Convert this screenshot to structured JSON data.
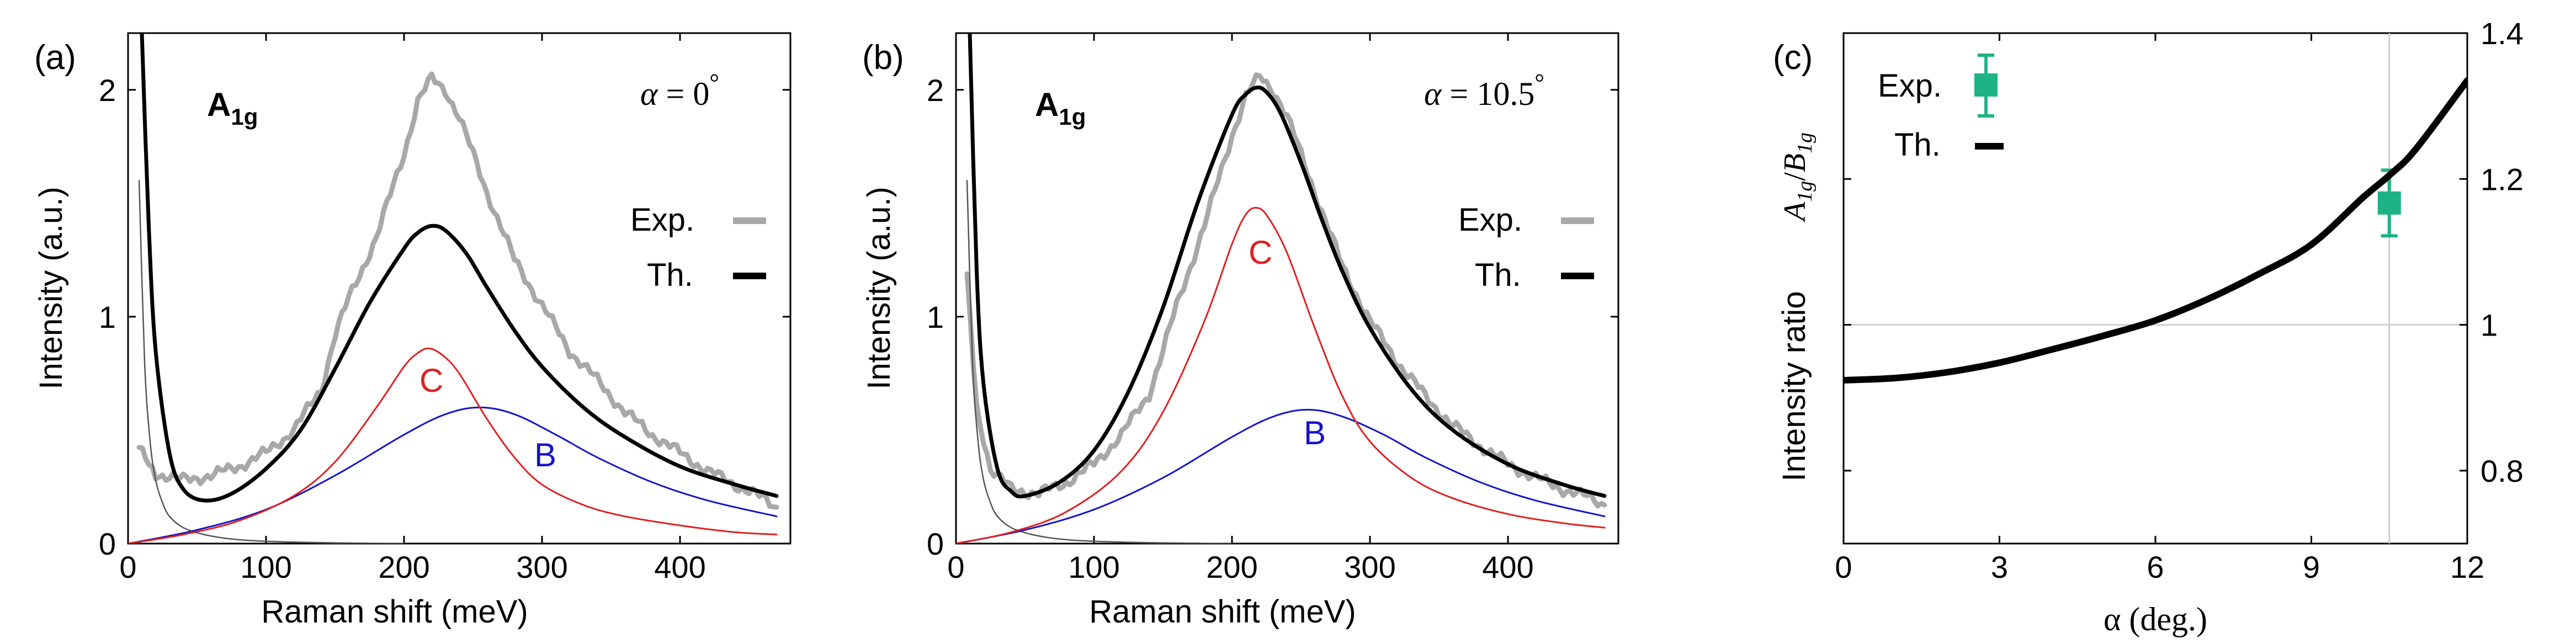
{
  "chart_data": [
    {
      "panel": "(a)",
      "type": "line",
      "title": "A1g",
      "title_main": "A",
      "title_sub": "1g",
      "angle_label": "α = 0",
      "angle_symbol": "α",
      "angle_rest": " = 0",
      "degree_mark": "°",
      "xlabel": "Raman shift (meV)",
      "ylabel": "Intensity (a.u.)",
      "xlim": [
        0,
        480
      ],
      "ylim": [
        0,
        2.25
      ],
      "xticks": [
        0,
        100,
        200,
        300,
        400
      ],
      "xtick_labels": [
        "0",
        "100",
        "200",
        "300",
        "400"
      ],
      "yticks": [
        0,
        1,
        2
      ],
      "ytick_labels": [
        "0",
        "1",
        "2"
      ],
      "legend": [
        "Exp.",
        "Th."
      ],
      "peak_labels": {
        "C": "C",
        "B": "B"
      },
      "series": [
        {
          "name": "Exp.",
          "color": "#a8a8a8",
          "x": [
            8,
            20,
            40,
            60,
            80,
            100,
            120,
            140,
            150,
            160,
            180,
            200,
            210,
            220,
            230,
            240,
            260,
            280,
            300,
            320,
            340,
            360,
            380,
            400,
            420,
            440,
            460,
            470
          ],
          "y": [
            0.45,
            0.31,
            0.28,
            0.3,
            0.34,
            0.4,
            0.5,
            0.68,
            0.92,
            1.08,
            1.35,
            1.72,
            1.95,
            2.05,
            2.0,
            1.88,
            1.55,
            1.25,
            1.05,
            0.85,
            0.72,
            0.58,
            0.48,
            0.4,
            0.32,
            0.26,
            0.2,
            0.16
          ]
        },
        {
          "name": "Th.",
          "color": "#000000",
          "x": [
            10,
            15,
            20,
            30,
            40,
            55,
            75,
            100,
            125,
            150,
            175,
            200,
            210,
            220,
            230,
            245,
            260,
            280,
            300,
            330,
            360,
            400,
            440,
            470
          ],
          "y": [
            2.25,
            1.4,
            0.85,
            0.4,
            0.24,
            0.19,
            0.22,
            0.33,
            0.5,
            0.77,
            1.06,
            1.3,
            1.37,
            1.4,
            1.38,
            1.28,
            1.13,
            0.94,
            0.78,
            0.6,
            0.47,
            0.34,
            0.26,
            0.21
          ]
        },
        {
          "name": "C",
          "color": "#e02020",
          "x": [
            0,
            40,
            80,
            120,
            150,
            180,
            200,
            210,
            218,
            228,
            240,
            260,
            280,
            300,
            330,
            360,
            400,
            440,
            470
          ],
          "y": [
            0,
            0.04,
            0.1,
            0.21,
            0.36,
            0.6,
            0.78,
            0.84,
            0.86,
            0.83,
            0.75,
            0.55,
            0.38,
            0.26,
            0.17,
            0.12,
            0.08,
            0.05,
            0.04
          ]
        },
        {
          "name": "B",
          "color": "#1414c8",
          "x": [
            0,
            50,
            100,
            150,
            200,
            230,
            255,
            280,
            310,
            340,
            380,
            420,
            470
          ],
          "y": [
            0,
            0.06,
            0.15,
            0.3,
            0.48,
            0.57,
            0.6,
            0.57,
            0.48,
            0.38,
            0.27,
            0.19,
            0.12
          ]
        },
        {
          "name": "background",
          "color": "#555555",
          "x": [
            8,
            12,
            16,
            20,
            25,
            30,
            40,
            55,
            75,
            100,
            150,
            200
          ],
          "y": [
            1.6,
            0.8,
            0.45,
            0.28,
            0.18,
            0.12,
            0.07,
            0.04,
            0.02,
            0.01,
            0.003,
            0
          ]
        }
      ]
    },
    {
      "panel": "(b)",
      "type": "line",
      "title": "A1g",
      "title_main": "A",
      "title_sub": "1g",
      "angle_label": "α = 10.5",
      "angle_symbol": "α",
      "angle_rest": " = 10.5",
      "degree_mark": "°",
      "xlabel": "Raman shift (meV)",
      "ylabel": "Intensity (a.u.)",
      "xlim": [
        0,
        480
      ],
      "ylim": [
        0,
        2.25
      ],
      "xticks": [
        0,
        100,
        200,
        300,
        400
      ],
      "xtick_labels": [
        "0",
        "100",
        "200",
        "300",
        "400"
      ],
      "yticks": [
        0,
        1,
        2
      ],
      "ytick_labels": [
        "0",
        "1",
        "2"
      ],
      "legend": [
        "Exp.",
        "Th."
      ],
      "peak_labels": {
        "C": "C",
        "B": "B"
      },
      "series": [
        {
          "name": "Exp.",
          "color": "#a8a8a8",
          "x": [
            8,
            15,
            25,
            40,
            60,
            80,
            100,
            120,
            140,
            150,
            160,
            180,
            200,
            210,
            220,
            230,
            240,
            260,
            280,
            300,
            320,
            340,
            360,
            380,
            400,
            420,
            440,
            460,
            470
          ],
          "y": [
            1.2,
            0.6,
            0.33,
            0.24,
            0.22,
            0.27,
            0.35,
            0.48,
            0.66,
            0.85,
            1.05,
            1.4,
            1.8,
            1.97,
            2.06,
            2.0,
            1.88,
            1.55,
            1.22,
            0.98,
            0.8,
            0.65,
            0.52,
            0.43,
            0.35,
            0.29,
            0.24,
            0.2,
            0.17
          ]
        },
        {
          "name": "Th.",
          "color": "#000000",
          "x": [
            10,
            15,
            20,
            30,
            40,
            50,
            75,
            100,
            125,
            150,
            175,
            200,
            210,
            218,
            225,
            235,
            250,
            265,
            280,
            300,
            330,
            360,
            400,
            440,
            470
          ],
          "y": [
            2.25,
            1.2,
            0.7,
            0.33,
            0.23,
            0.21,
            0.27,
            0.41,
            0.67,
            1.04,
            1.5,
            1.89,
            1.98,
            2.01,
            1.99,
            1.9,
            1.68,
            1.43,
            1.2,
            0.95,
            0.68,
            0.5,
            0.35,
            0.26,
            0.21
          ]
        },
        {
          "name": "C",
          "color": "#e02020",
          "x": [
            0,
            40,
            80,
            120,
            150,
            180,
            200,
            210,
            218,
            226,
            240,
            260,
            280,
            300,
            330,
            360,
            400,
            440,
            470
          ],
          "y": [
            0,
            0.05,
            0.14,
            0.32,
            0.58,
            0.98,
            1.32,
            1.45,
            1.48,
            1.44,
            1.28,
            0.95,
            0.65,
            0.45,
            0.29,
            0.2,
            0.13,
            0.09,
            0.07
          ]
        },
        {
          "name": "B",
          "color": "#1414c8",
          "x": [
            0,
            50,
            100,
            150,
            200,
            230,
            255,
            280,
            310,
            340,
            380,
            420,
            470
          ],
          "y": [
            0,
            0.06,
            0.15,
            0.29,
            0.47,
            0.56,
            0.59,
            0.56,
            0.48,
            0.38,
            0.27,
            0.19,
            0.12
          ]
        },
        {
          "name": "background",
          "color": "#555555",
          "x": [
            8,
            12,
            16,
            20,
            25,
            30,
            40,
            55,
            75,
            100,
            150,
            200
          ],
          "y": [
            1.6,
            0.8,
            0.45,
            0.28,
            0.18,
            0.12,
            0.07,
            0.04,
            0.02,
            0.01,
            0.003,
            0
          ]
        }
      ]
    },
    {
      "panel": "(c)",
      "type": "line",
      "xlabel": "α (deg.)",
      "ylabel": "Intensity ratio",
      "ratio_label": "A1g/B1g",
      "ratio_a": "A",
      "ratio_a_sub": "1g",
      "ratio_b": "B",
      "ratio_b_sub": "1g",
      "ratio_slash": "/",
      "xlim": [
        0,
        12
      ],
      "ylim": [
        0.7,
        1.4
      ],
      "xticks": [
        0,
        3,
        6,
        9,
        12
      ],
      "xtick_labels": [
        "0",
        "3",
        "6",
        "9",
        "12"
      ],
      "yticks": [
        0.8,
        1.0,
        1.2,
        1.4
      ],
      "ytick_labels": [
        "0.8",
        "1",
        "1.2",
        "1.4"
      ],
      "reference_lines": {
        "y": 1.0,
        "x": 10.5
      },
      "legend": [
        "Exp.",
        "Th."
      ],
      "series": [
        {
          "name": "Th.",
          "color": "#000000",
          "x": [
            0,
            1,
            2,
            3,
            4,
            5,
            6,
            7,
            8,
            9,
            10,
            10.5,
            11,
            12
          ],
          "y": [
            0.924,
            0.927,
            0.935,
            0.948,
            0.966,
            0.985,
            1.006,
            1.035,
            1.07,
            1.11,
            1.175,
            1.205,
            1.24,
            1.335
          ]
        },
        {
          "name": "Exp.",
          "color": "#1db384",
          "x": [
            10.5
          ],
          "y": [
            1.167
          ],
          "yerr": [
            0.045
          ]
        }
      ]
    }
  ]
}
